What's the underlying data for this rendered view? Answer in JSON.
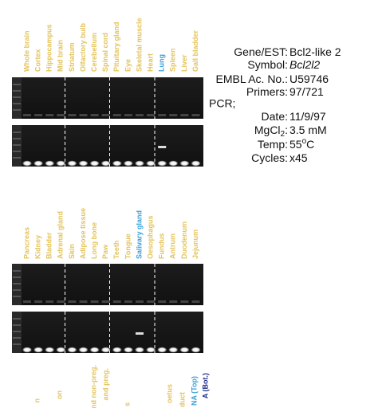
{
  "panels": [
    {
      "lanes": [
        "Whole brain",
        "Cortex",
        "Hippocampus",
        "Mid brain",
        "Striatum",
        "Olfactory bulb",
        "Cerebellum",
        "Spinal cord",
        "Pituitary gland",
        "Eye",
        "Skeletal muscle",
        "Heart",
        "Lung",
        "Spleen",
        "Liver",
        "Gall bladder"
      ],
      "highlight": 12
    },
    {
      "lanes": [
        "Pancreas",
        "Kidney",
        "Bladder",
        "Adrenal gland",
        "Skin",
        "Adipose tissue",
        "Long bone",
        "Paw",
        "Teeth",
        "Tongue",
        "Salivary gland",
        "Oesophagus",
        "Fundus",
        "Antrum",
        "Duodenum",
        "Jejunum"
      ],
      "highlight": 10
    }
  ],
  "info": [
    {
      "label": "Gene/EST:",
      "value": "Bcl2-like 2"
    },
    {
      "label": "Symbol:",
      "value": "Bcl2l2",
      "italic": true
    },
    {
      "label": "EMBL Ac. No.:",
      "value": "U59746"
    },
    {
      "label": "Primers:",
      "value": "97/721"
    },
    {
      "heading": "PCR;"
    },
    {
      "label": "Date:",
      "value": "11/9/97"
    },
    {
      "label": "MgCl",
      "label_sub": "2",
      "label_end": ":",
      "value": "3.5 mM"
    },
    {
      "label": "Temp:",
      "value": "55",
      "value_sup": "o",
      "value_end": "C"
    },
    {
      "label": "Cycles:",
      "value": "x45"
    }
  ],
  "cropped_lanes": [
    {
      "text": "n",
      "color": "#e3c35a"
    },
    {
      "text": "on",
      "color": "#e3c35a"
    },
    {
      "text": "and non-preg.",
      "color": "#e3c35a"
    },
    {
      "text": "and preg.",
      "color": "#e3c35a"
    },
    {
      "text": "s",
      "color": "#e3c35a"
    },
    {
      "text": "oetus",
      "color": "#e3c35a"
    },
    {
      "text": "duct",
      "color": "#e3c35a"
    },
    {
      "text": "NA (Top)",
      "color": "#3a9fd8"
    },
    {
      "text": "A (Bot.)",
      "color": "#1b2a88"
    }
  ]
}
